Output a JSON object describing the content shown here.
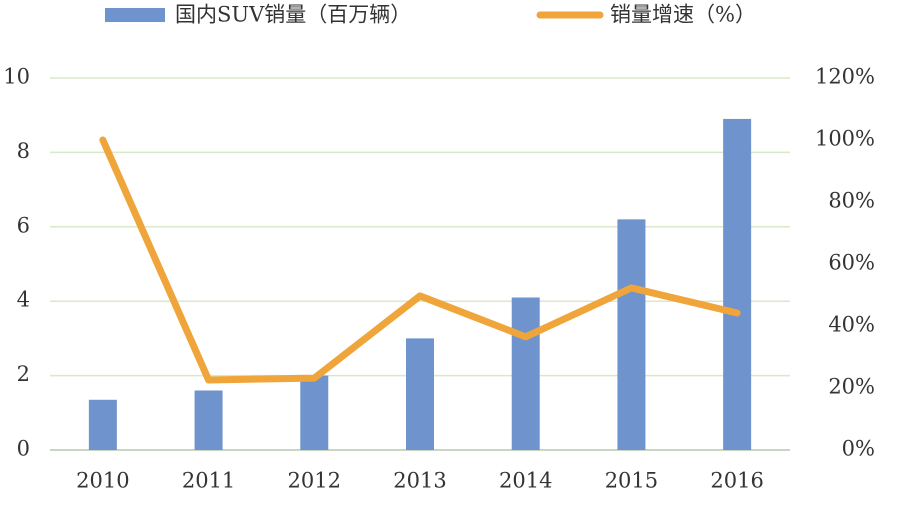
{
  "chart_data": {
    "type": "bar-line",
    "categories": [
      "2010",
      "2011",
      "2012",
      "2013",
      "2014",
      "2015",
      "2016"
    ],
    "series": [
      {
        "name": "国内SUV销量（百万辆）",
        "type": "bar",
        "color": "#6f93cc",
        "values": [
          1.35,
          1.6,
          2.0,
          3.0,
          4.1,
          6.2,
          8.9
        ]
      },
      {
        "name": "销量增速（%）",
        "type": "line",
        "axis": "y2",
        "color": "#f0a53a",
        "values": [
          100,
          22.6,
          23.2,
          49.7,
          36.5,
          52.3,
          44.2
        ]
      }
    ],
    "ylim": [
      0,
      10
    ],
    "yticks": [
      0,
      2,
      4,
      6,
      8,
      10
    ],
    "y2lim": [
      0,
      120
    ],
    "y2ticks": [
      {
        "value": 0,
        "label": "0%"
      },
      {
        "value": 20,
        "label": "20%"
      },
      {
        "value": 40,
        "label": "40%"
      },
      {
        "value": 60,
        "label": "60%"
      },
      {
        "value": 80,
        "label": "80%"
      },
      {
        "value": 100,
        "label": "100%"
      },
      {
        "value": 120,
        "label": "120%"
      }
    ],
    "grid": true,
    "legend": "top"
  }
}
